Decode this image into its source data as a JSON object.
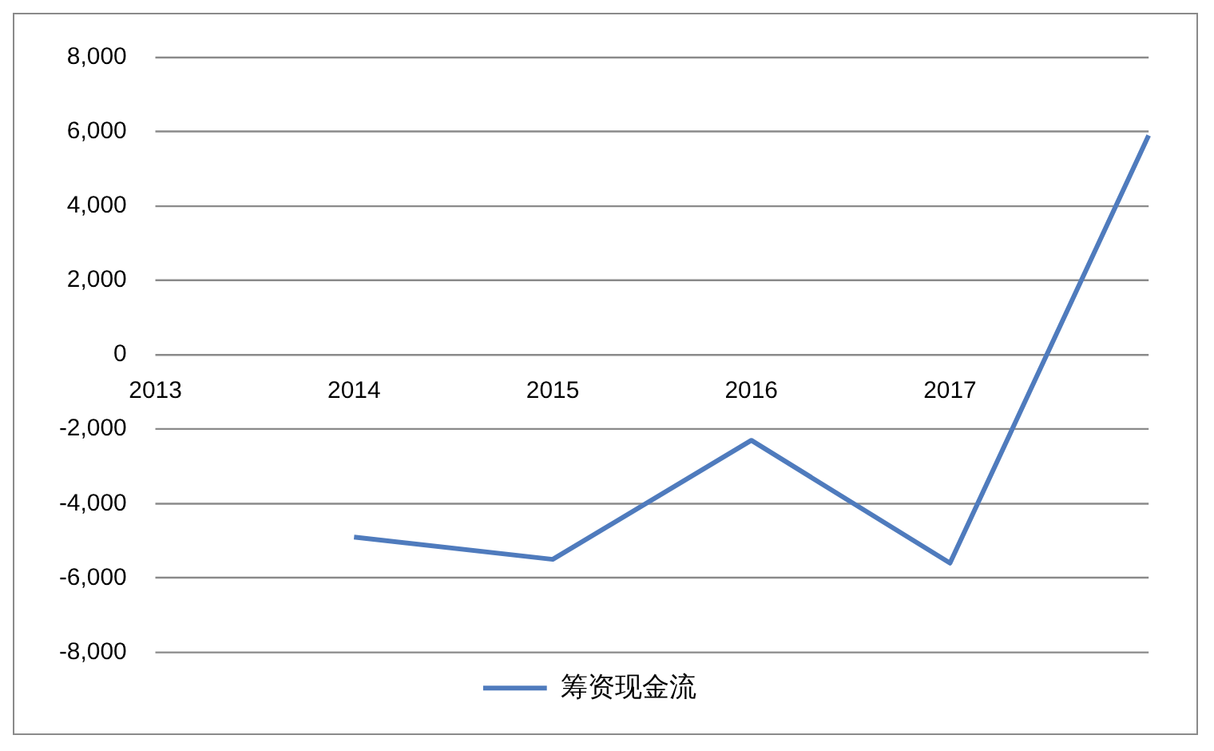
{
  "chart_data": {
    "type": "line",
    "categories": [
      "2013",
      "2014",
      "2015",
      "2016",
      "2017",
      null
    ],
    "series": [
      {
        "name": "筹资现金流",
        "color": "#4f7bbd",
        "values": [
          null,
          -4900,
          -5500,
          -2300,
          -5600,
          5900
        ]
      }
    ],
    "ylim": [
      -8000,
      8000
    ],
    "yticks": [
      {
        "value": -8000,
        "label": "-8,000"
      },
      {
        "value": -6000,
        "label": "-6,000"
      },
      {
        "value": -4000,
        "label": "-4,000"
      },
      {
        "value": -2000,
        "label": "-2,000"
      },
      0,
      {
        "value": 2000,
        "label": "2,000"
      },
      {
        "value": 4000,
        "label": "4,000"
      },
      {
        "value": 6000,
        "label": "6,000"
      },
      {
        "value": 8000,
        "label": "8,000"
      }
    ],
    "grid": "y",
    "legend": "bottom",
    "marker": "none",
    "line_style": "solid"
  }
}
